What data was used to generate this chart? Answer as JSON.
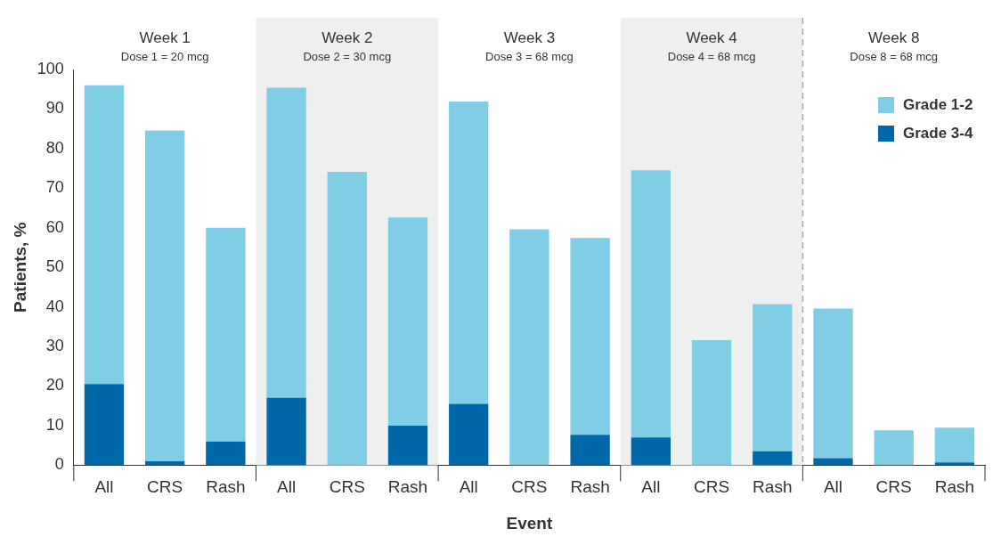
{
  "chart_data": {
    "type": "bar",
    "stacked": true,
    "xlabel": "Event",
    "ylabel": "Patients, %",
    "categories": [
      "All",
      "CRS",
      "Rash",
      "All",
      "CRS",
      "Rash",
      "All",
      "CRS",
      "Rash",
      "All",
      "CRS",
      "Rash",
      "All",
      "CRS",
      "Rash"
    ],
    "series": [
      {
        "name": "Grade 3-4",
        "color": "#0068a9",
        "values": [
          20.5,
          1,
          6,
          17,
          0,
          10,
          15.5,
          0,
          7.7,
          7,
          0,
          3.5,
          1.8,
          0,
          0.7
        ]
      },
      {
        "name": "Grade 1-2",
        "color": "#80cde6",
        "values": [
          75.5,
          83.6,
          54,
          78.4,
          74.1,
          52.6,
          76.4,
          59.6,
          49.7,
          67.5,
          31.6,
          37.2,
          37.8,
          8.8,
          8.8
        ]
      }
    ],
    "ylim": [
      0,
      100
    ],
    "yticks": [
      0,
      10,
      20,
      30,
      40,
      50,
      60,
      70,
      80,
      90,
      100
    ],
    "grid": false,
    "legend": "top right",
    "annotations": [
      "Week 1",
      "Dose 1 = 20 mcg",
      "Week 2",
      "Dose 2 = 30 mcg",
      "Week 3",
      "Dose 3 = 68 mcg",
      "Week 4",
      "Dose 4 = 68 mcg",
      "Week 8",
      "Dose 8 = 68 mcg"
    ]
  }
}
